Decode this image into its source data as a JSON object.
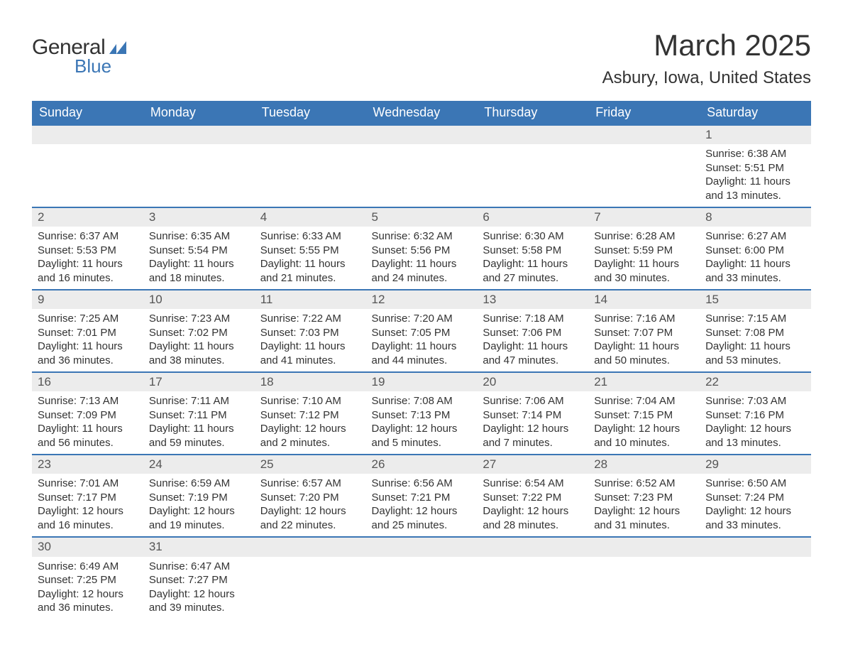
{
  "brand": {
    "general": "General",
    "blue": "Blue"
  },
  "title": "March 2025",
  "location": "Asbury, Iowa, United States",
  "colors": {
    "header_bg": "#3b76b5",
    "header_text": "#ffffff",
    "daynum_bg": "#ececec",
    "text": "#333333",
    "border": "#3b76b5"
  },
  "typography": {
    "title_fontsize": 42,
    "location_fontsize": 24,
    "dayheader_fontsize": 18,
    "body_fontsize": 15,
    "logo_fontsize": 30
  },
  "calendar": {
    "day_headers": [
      "Sunday",
      "Monday",
      "Tuesday",
      "Wednesday",
      "Thursday",
      "Friday",
      "Saturday"
    ],
    "weeks": [
      [
        null,
        null,
        null,
        null,
        null,
        null,
        {
          "day": "1",
          "sunrise": "Sunrise: 6:38 AM",
          "sunset": "Sunset: 5:51 PM",
          "daylight1": "Daylight: 11 hours",
          "daylight2": "and 13 minutes."
        }
      ],
      [
        {
          "day": "2",
          "sunrise": "Sunrise: 6:37 AM",
          "sunset": "Sunset: 5:53 PM",
          "daylight1": "Daylight: 11 hours",
          "daylight2": "and 16 minutes."
        },
        {
          "day": "3",
          "sunrise": "Sunrise: 6:35 AM",
          "sunset": "Sunset: 5:54 PM",
          "daylight1": "Daylight: 11 hours",
          "daylight2": "and 18 minutes."
        },
        {
          "day": "4",
          "sunrise": "Sunrise: 6:33 AM",
          "sunset": "Sunset: 5:55 PM",
          "daylight1": "Daylight: 11 hours",
          "daylight2": "and 21 minutes."
        },
        {
          "day": "5",
          "sunrise": "Sunrise: 6:32 AM",
          "sunset": "Sunset: 5:56 PM",
          "daylight1": "Daylight: 11 hours",
          "daylight2": "and 24 minutes."
        },
        {
          "day": "6",
          "sunrise": "Sunrise: 6:30 AM",
          "sunset": "Sunset: 5:58 PM",
          "daylight1": "Daylight: 11 hours",
          "daylight2": "and 27 minutes."
        },
        {
          "day": "7",
          "sunrise": "Sunrise: 6:28 AM",
          "sunset": "Sunset: 5:59 PM",
          "daylight1": "Daylight: 11 hours",
          "daylight2": "and 30 minutes."
        },
        {
          "day": "8",
          "sunrise": "Sunrise: 6:27 AM",
          "sunset": "Sunset: 6:00 PM",
          "daylight1": "Daylight: 11 hours",
          "daylight2": "and 33 minutes."
        }
      ],
      [
        {
          "day": "9",
          "sunrise": "Sunrise: 7:25 AM",
          "sunset": "Sunset: 7:01 PM",
          "daylight1": "Daylight: 11 hours",
          "daylight2": "and 36 minutes."
        },
        {
          "day": "10",
          "sunrise": "Sunrise: 7:23 AM",
          "sunset": "Sunset: 7:02 PM",
          "daylight1": "Daylight: 11 hours",
          "daylight2": "and 38 minutes."
        },
        {
          "day": "11",
          "sunrise": "Sunrise: 7:22 AM",
          "sunset": "Sunset: 7:03 PM",
          "daylight1": "Daylight: 11 hours",
          "daylight2": "and 41 minutes."
        },
        {
          "day": "12",
          "sunrise": "Sunrise: 7:20 AM",
          "sunset": "Sunset: 7:05 PM",
          "daylight1": "Daylight: 11 hours",
          "daylight2": "and 44 minutes."
        },
        {
          "day": "13",
          "sunrise": "Sunrise: 7:18 AM",
          "sunset": "Sunset: 7:06 PM",
          "daylight1": "Daylight: 11 hours",
          "daylight2": "and 47 minutes."
        },
        {
          "day": "14",
          "sunrise": "Sunrise: 7:16 AM",
          "sunset": "Sunset: 7:07 PM",
          "daylight1": "Daylight: 11 hours",
          "daylight2": "and 50 minutes."
        },
        {
          "day": "15",
          "sunrise": "Sunrise: 7:15 AM",
          "sunset": "Sunset: 7:08 PM",
          "daylight1": "Daylight: 11 hours",
          "daylight2": "and 53 minutes."
        }
      ],
      [
        {
          "day": "16",
          "sunrise": "Sunrise: 7:13 AM",
          "sunset": "Sunset: 7:09 PM",
          "daylight1": "Daylight: 11 hours",
          "daylight2": "and 56 minutes."
        },
        {
          "day": "17",
          "sunrise": "Sunrise: 7:11 AM",
          "sunset": "Sunset: 7:11 PM",
          "daylight1": "Daylight: 11 hours",
          "daylight2": "and 59 minutes."
        },
        {
          "day": "18",
          "sunrise": "Sunrise: 7:10 AM",
          "sunset": "Sunset: 7:12 PM",
          "daylight1": "Daylight: 12 hours",
          "daylight2": "and 2 minutes."
        },
        {
          "day": "19",
          "sunrise": "Sunrise: 7:08 AM",
          "sunset": "Sunset: 7:13 PM",
          "daylight1": "Daylight: 12 hours",
          "daylight2": "and 5 minutes."
        },
        {
          "day": "20",
          "sunrise": "Sunrise: 7:06 AM",
          "sunset": "Sunset: 7:14 PM",
          "daylight1": "Daylight: 12 hours",
          "daylight2": "and 7 minutes."
        },
        {
          "day": "21",
          "sunrise": "Sunrise: 7:04 AM",
          "sunset": "Sunset: 7:15 PM",
          "daylight1": "Daylight: 12 hours",
          "daylight2": "and 10 minutes."
        },
        {
          "day": "22",
          "sunrise": "Sunrise: 7:03 AM",
          "sunset": "Sunset: 7:16 PM",
          "daylight1": "Daylight: 12 hours",
          "daylight2": "and 13 minutes."
        }
      ],
      [
        {
          "day": "23",
          "sunrise": "Sunrise: 7:01 AM",
          "sunset": "Sunset: 7:17 PM",
          "daylight1": "Daylight: 12 hours",
          "daylight2": "and 16 minutes."
        },
        {
          "day": "24",
          "sunrise": "Sunrise: 6:59 AM",
          "sunset": "Sunset: 7:19 PM",
          "daylight1": "Daylight: 12 hours",
          "daylight2": "and 19 minutes."
        },
        {
          "day": "25",
          "sunrise": "Sunrise: 6:57 AM",
          "sunset": "Sunset: 7:20 PM",
          "daylight1": "Daylight: 12 hours",
          "daylight2": "and 22 minutes."
        },
        {
          "day": "26",
          "sunrise": "Sunrise: 6:56 AM",
          "sunset": "Sunset: 7:21 PM",
          "daylight1": "Daylight: 12 hours",
          "daylight2": "and 25 minutes."
        },
        {
          "day": "27",
          "sunrise": "Sunrise: 6:54 AM",
          "sunset": "Sunset: 7:22 PM",
          "daylight1": "Daylight: 12 hours",
          "daylight2": "and 28 minutes."
        },
        {
          "day": "28",
          "sunrise": "Sunrise: 6:52 AM",
          "sunset": "Sunset: 7:23 PM",
          "daylight1": "Daylight: 12 hours",
          "daylight2": "and 31 minutes."
        },
        {
          "day": "29",
          "sunrise": "Sunrise: 6:50 AM",
          "sunset": "Sunset: 7:24 PM",
          "daylight1": "Daylight: 12 hours",
          "daylight2": "and 33 minutes."
        }
      ],
      [
        {
          "day": "30",
          "sunrise": "Sunrise: 6:49 AM",
          "sunset": "Sunset: 7:25 PM",
          "daylight1": "Daylight: 12 hours",
          "daylight2": "and 36 minutes."
        },
        {
          "day": "31",
          "sunrise": "Sunrise: 6:47 AM",
          "sunset": "Sunset: 7:27 PM",
          "daylight1": "Daylight: 12 hours",
          "daylight2": "and 39 minutes."
        },
        null,
        null,
        null,
        null,
        null
      ]
    ]
  }
}
